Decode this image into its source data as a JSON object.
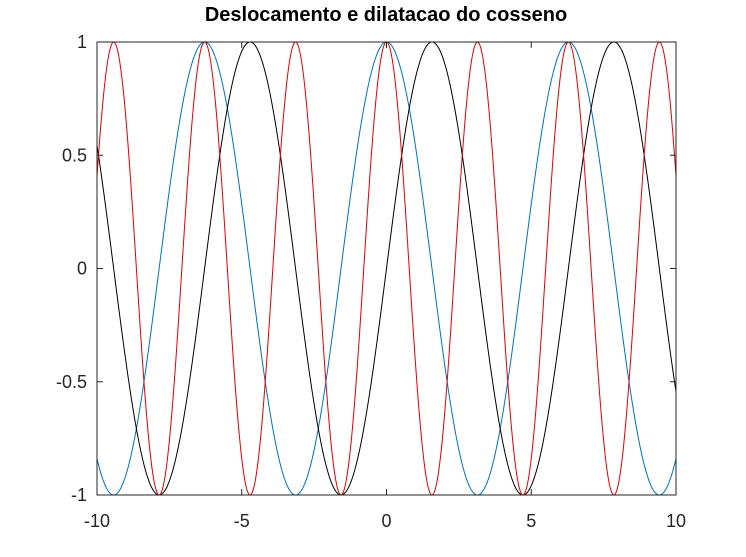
{
  "chart_data": {
    "type": "line",
    "title": "Deslocamento e dilatacao do cosseno",
    "xlabel": "",
    "ylabel": "",
    "xlim": [
      -10,
      10
    ],
    "ylim": [
      -1,
      1
    ],
    "x_ticks": [
      -10,
      -5,
      0,
      5,
      10
    ],
    "x_tick_labels": [
      "-10",
      "-5",
      "0",
      "5",
      "10"
    ],
    "y_ticks": [
      -1,
      -0.5,
      0,
      0.5,
      1
    ],
    "y_tick_labels": [
      "-1",
      "-0.5",
      "0",
      "0.5",
      "1"
    ],
    "grid": false,
    "box": true,
    "samples": 801,
    "series": [
      {
        "function": "cos(x)",
        "amplitude": 1,
        "frequency": 1,
        "shift": 0,
        "color": "#0072BD"
      },
      {
        "function": "cos(x - pi/2)",
        "amplitude": 1,
        "frequency": 1,
        "shift": 1.5708,
        "color": "#000000"
      },
      {
        "function": "cos(2x)",
        "amplitude": 1,
        "frequency": 2,
        "shift": 0,
        "color": "#E00000"
      }
    ]
  }
}
